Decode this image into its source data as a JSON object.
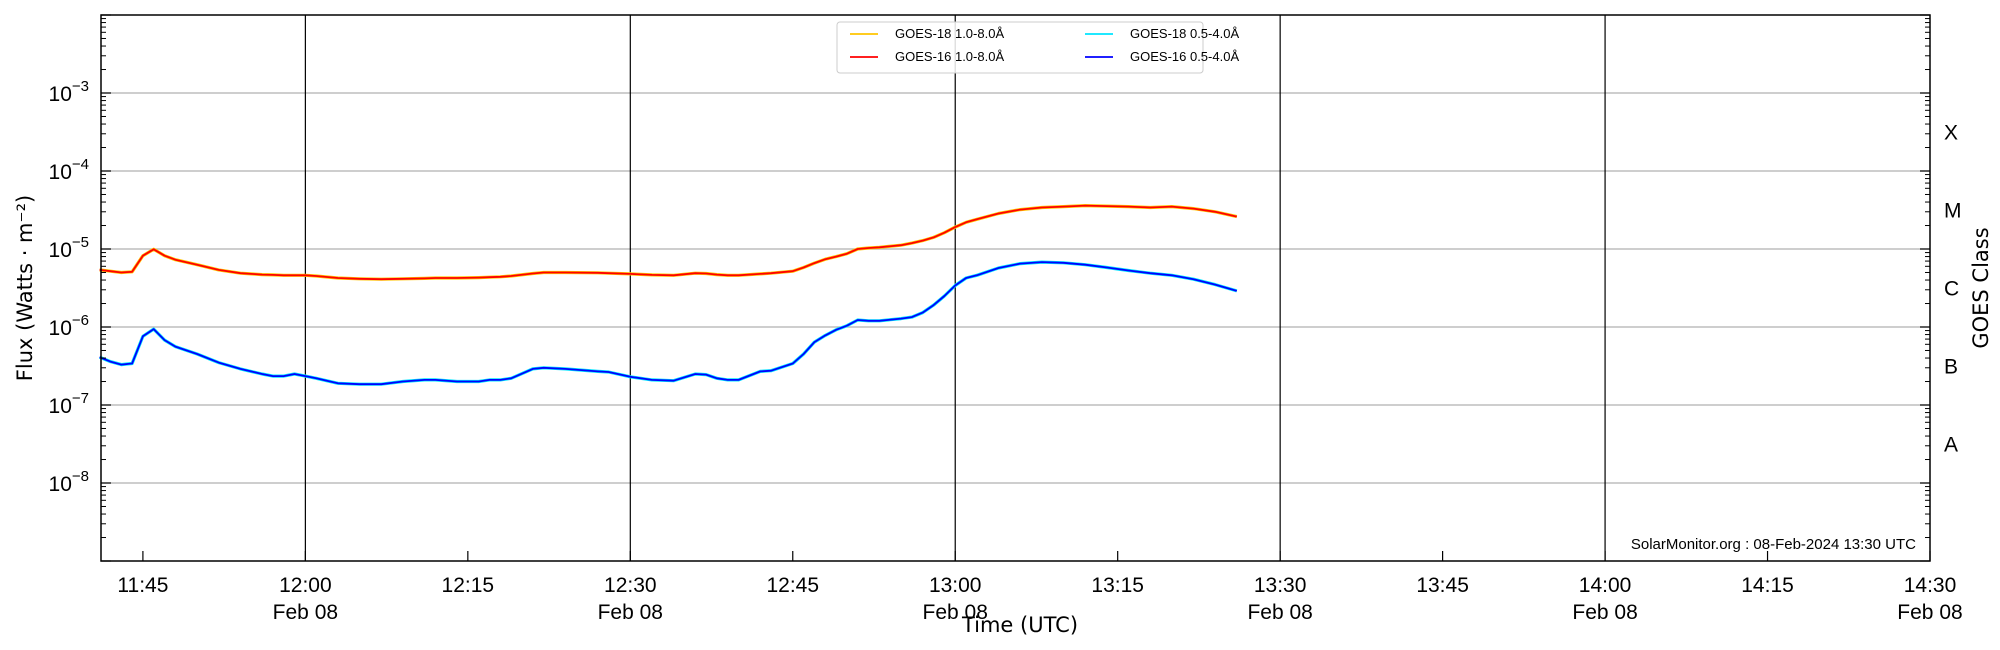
{
  "chart_data": {
    "type": "line",
    "xlabel": "Time (UTC)",
    "ylabel": "Flux (Watts · m⁻²)",
    "ylabel_right": "GOES Class",
    "y_scale": "log",
    "xlim": [
      "11:41",
      "14:30"
    ],
    "ylim": [
      1e-09,
      0.01
    ],
    "grid": {
      "horizontal": true,
      "vertical_major": true
    },
    "legend_placement": "top-center",
    "x_ticks": [
      {
        "label": "11:45",
        "date": ""
      },
      {
        "label": "12:00",
        "date": "Feb 08"
      },
      {
        "label": "12:15",
        "date": ""
      },
      {
        "label": "12:30",
        "date": "Feb 08"
      },
      {
        "label": "12:45",
        "date": ""
      },
      {
        "label": "13:00",
        "date": "Feb 08"
      },
      {
        "label": "13:15",
        "date": ""
      },
      {
        "label": "13:30",
        "date": "Feb 08"
      },
      {
        "label": "13:45",
        "date": ""
      },
      {
        "label": "14:00",
        "date": "Feb 08"
      },
      {
        "label": "14:15",
        "date": ""
      },
      {
        "label": "14:30",
        "date": "Feb 08"
      }
    ],
    "y_ticks": [
      {
        "base": "10",
        "exp": "−3",
        "value": 0.001
      },
      {
        "base": "10",
        "exp": "−4",
        "value": 0.0001
      },
      {
        "base": "10",
        "exp": "−5",
        "value": 1e-05
      },
      {
        "base": "10",
        "exp": "−6",
        "value": 1e-06
      },
      {
        "base": "10",
        "exp": "−7",
        "value": 1e-07
      },
      {
        "base": "10",
        "exp": "−8",
        "value": 1e-08
      }
    ],
    "goes_classes": [
      {
        "label": "X",
        "value": 0.00032
      },
      {
        "label": "M",
        "value": 3.2e-05
      },
      {
        "label": "C",
        "value": 3.2e-06
      },
      {
        "label": "B",
        "value": 3.2e-07
      },
      {
        "label": "A",
        "value": 3.2e-08
      }
    ],
    "x": [
      "11:41",
      "11:42",
      "11:43",
      "11:44",
      "11:45",
      "11:46",
      "11:47",
      "11:48",
      "11:50",
      "11:52",
      "11:54",
      "11:56",
      "11:57",
      "11:58",
      "11:59",
      "12:00",
      "12:01",
      "12:03",
      "12:05",
      "12:07",
      "12:09",
      "12:11",
      "12:12",
      "12:14",
      "12:16",
      "12:17",
      "12:18",
      "12:19",
      "12:21",
      "12:22",
      "12:24",
      "12:27",
      "12:28",
      "12:30",
      "12:32",
      "12:34",
      "12:36",
      "12:37",
      "12:38",
      "12:39",
      "12:40",
      "12:42",
      "12:43",
      "12:45",
      "12:46",
      "12:47",
      "12:48",
      "12:49",
      "12:50",
      "12:51",
      "12:52",
      "12:53",
      "12:55",
      "12:56",
      "12:57",
      "12:58",
      "12:59",
      "13:00",
      "13:01",
      "13:02",
      "13:04",
      "13:06",
      "13:08",
      "13:10",
      "13:12",
      "13:14",
      "13:16",
      "13:18",
      "13:20",
      "13:22",
      "13:24",
      "13:26"
    ],
    "series": [
      {
        "name": "GOES-18 1.0-8.0Å",
        "color": "#ffc400",
        "values": [
          5.4e-06,
          5.2e-06,
          5e-06,
          5.1e-06,
          8.2e-06,
          9.9e-06,
          8.2e-06,
          7.3e-06,
          6.3e-06,
          5.4e-06,
          4.9e-06,
          4.7e-06,
          4.65e-06,
          4.6e-06,
          4.6e-06,
          4.6e-06,
          4.5e-06,
          4.25e-06,
          4.15e-06,
          4.1e-06,
          4.15e-06,
          4.2e-06,
          4.25e-06,
          4.25e-06,
          4.3e-06,
          4.35e-06,
          4.4e-06,
          4.5e-06,
          4.85e-06,
          5e-06,
          5e-06,
          4.95e-06,
          4.9e-06,
          4.8e-06,
          4.65e-06,
          4.6e-06,
          4.9e-06,
          4.85e-06,
          4.7e-06,
          4.6e-06,
          4.6e-06,
          4.8e-06,
          4.9e-06,
          5.2e-06,
          5.8e-06,
          6.6e-06,
          7.4e-06,
          8e-06,
          8.7e-06,
          1e-05,
          1.03e-05,
          1.05e-05,
          1.12e-05,
          1.19e-05,
          1.28e-05,
          1.41e-05,
          1.62e-05,
          1.91e-05,
          2.2e-05,
          2.4e-05,
          2.85e-05,
          3.2e-05,
          3.4e-05,
          3.5e-05,
          3.6e-05,
          3.55e-05,
          3.5e-05,
          3.4e-05,
          3.5e-05,
          3.3e-05,
          3e-05,
          2.6e-05
        ]
      },
      {
        "name": "GOES-16 1.0-8.0Å",
        "color": "#ff0000",
        "values": [
          5.4e-06,
          5.2e-06,
          5e-06,
          5.1e-06,
          8.2e-06,
          9.9e-06,
          8.2e-06,
          7.3e-06,
          6.3e-06,
          5.4e-06,
          4.9e-06,
          4.7e-06,
          4.65e-06,
          4.6e-06,
          4.6e-06,
          4.6e-06,
          4.5e-06,
          4.25e-06,
          4.15e-06,
          4.1e-06,
          4.15e-06,
          4.2e-06,
          4.25e-06,
          4.25e-06,
          4.3e-06,
          4.35e-06,
          4.4e-06,
          4.5e-06,
          4.85e-06,
          5e-06,
          5e-06,
          4.95e-06,
          4.9e-06,
          4.8e-06,
          4.65e-06,
          4.6e-06,
          4.9e-06,
          4.85e-06,
          4.7e-06,
          4.6e-06,
          4.6e-06,
          4.8e-06,
          4.9e-06,
          5.2e-06,
          5.8e-06,
          6.6e-06,
          7.4e-06,
          8e-06,
          8.7e-06,
          1e-05,
          1.03e-05,
          1.05e-05,
          1.12e-05,
          1.19e-05,
          1.28e-05,
          1.41e-05,
          1.62e-05,
          1.91e-05,
          2.2e-05,
          2.4e-05,
          2.85e-05,
          3.2e-05,
          3.4e-05,
          3.5e-05,
          3.6e-05,
          3.55e-05,
          3.5e-05,
          3.4e-05,
          3.5e-05,
          3.3e-05,
          3e-05,
          2.6e-05
        ]
      },
      {
        "name": "GOES-18 0.5-4.0Å",
        "color": "#00e5ff",
        "values": [
          4.1e-07,
          3.6e-07,
          3.3e-07,
          3.4e-07,
          7.6e-07,
          9.4e-07,
          6.8e-07,
          5.6e-07,
          4.5e-07,
          3.5e-07,
          2.9e-07,
          2.5e-07,
          2.35e-07,
          2.35e-07,
          2.5e-07,
          2.35e-07,
          2.2e-07,
          1.9e-07,
          1.85e-07,
          1.85e-07,
          2e-07,
          2.1e-07,
          2.1e-07,
          2e-07,
          2e-07,
          2.1e-07,
          2.1e-07,
          2.2e-07,
          2.9e-07,
          3e-07,
          2.9e-07,
          2.7e-07,
          2.65e-07,
          2.3e-07,
          2.1e-07,
          2.05e-07,
          2.5e-07,
          2.45e-07,
          2.2e-07,
          2.1e-07,
          2.1e-07,
          2.7e-07,
          2.75e-07,
          3.4e-07,
          4.5e-07,
          6.4e-07,
          7.8e-07,
          9.2e-07,
          1.04e-06,
          1.23e-06,
          1.2e-06,
          1.2e-06,
          1.28e-06,
          1.34e-06,
          1.53e-06,
          1.91e-06,
          2.5e-06,
          3.4e-06,
          4.25e-06,
          4.6e-06,
          5.7e-06,
          6.5e-06,
          6.8e-06,
          6.65e-06,
          6.3e-06,
          5.8e-06,
          5.3e-06,
          4.9e-06,
          4.6e-06,
          4.1e-06,
          3.5e-06,
          2.9e-06
        ]
      },
      {
        "name": "GOES-16 0.5-4.0Å",
        "color": "#0000ff",
        "values": [
          4.1e-07,
          3.6e-07,
          3.3e-07,
          3.4e-07,
          7.6e-07,
          9.4e-07,
          6.8e-07,
          5.6e-07,
          4.5e-07,
          3.5e-07,
          2.9e-07,
          2.5e-07,
          2.35e-07,
          2.35e-07,
          2.5e-07,
          2.35e-07,
          2.2e-07,
          1.9e-07,
          1.85e-07,
          1.85e-07,
          2e-07,
          2.1e-07,
          2.1e-07,
          2e-07,
          2e-07,
          2.1e-07,
          2.1e-07,
          2.2e-07,
          2.9e-07,
          3e-07,
          2.9e-07,
          2.7e-07,
          2.65e-07,
          2.3e-07,
          2.1e-07,
          2.05e-07,
          2.5e-07,
          2.45e-07,
          2.2e-07,
          2.1e-07,
          2.1e-07,
          2.7e-07,
          2.75e-07,
          3.4e-07,
          4.5e-07,
          6.4e-07,
          7.8e-07,
          9.2e-07,
          1.04e-06,
          1.23e-06,
          1.2e-06,
          1.2e-06,
          1.28e-06,
          1.34e-06,
          1.53e-06,
          1.91e-06,
          2.5e-06,
          3.4e-06,
          4.25e-06,
          4.6e-06,
          5.7e-06,
          6.5e-06,
          6.8e-06,
          6.65e-06,
          6.3e-06,
          5.8e-06,
          5.3e-06,
          4.9e-06,
          4.6e-06,
          4.1e-06,
          3.5e-06,
          2.9e-06
        ]
      }
    ],
    "annotation": "SolarMonitor.org : 08-Feb-2024 13:30 UTC"
  }
}
